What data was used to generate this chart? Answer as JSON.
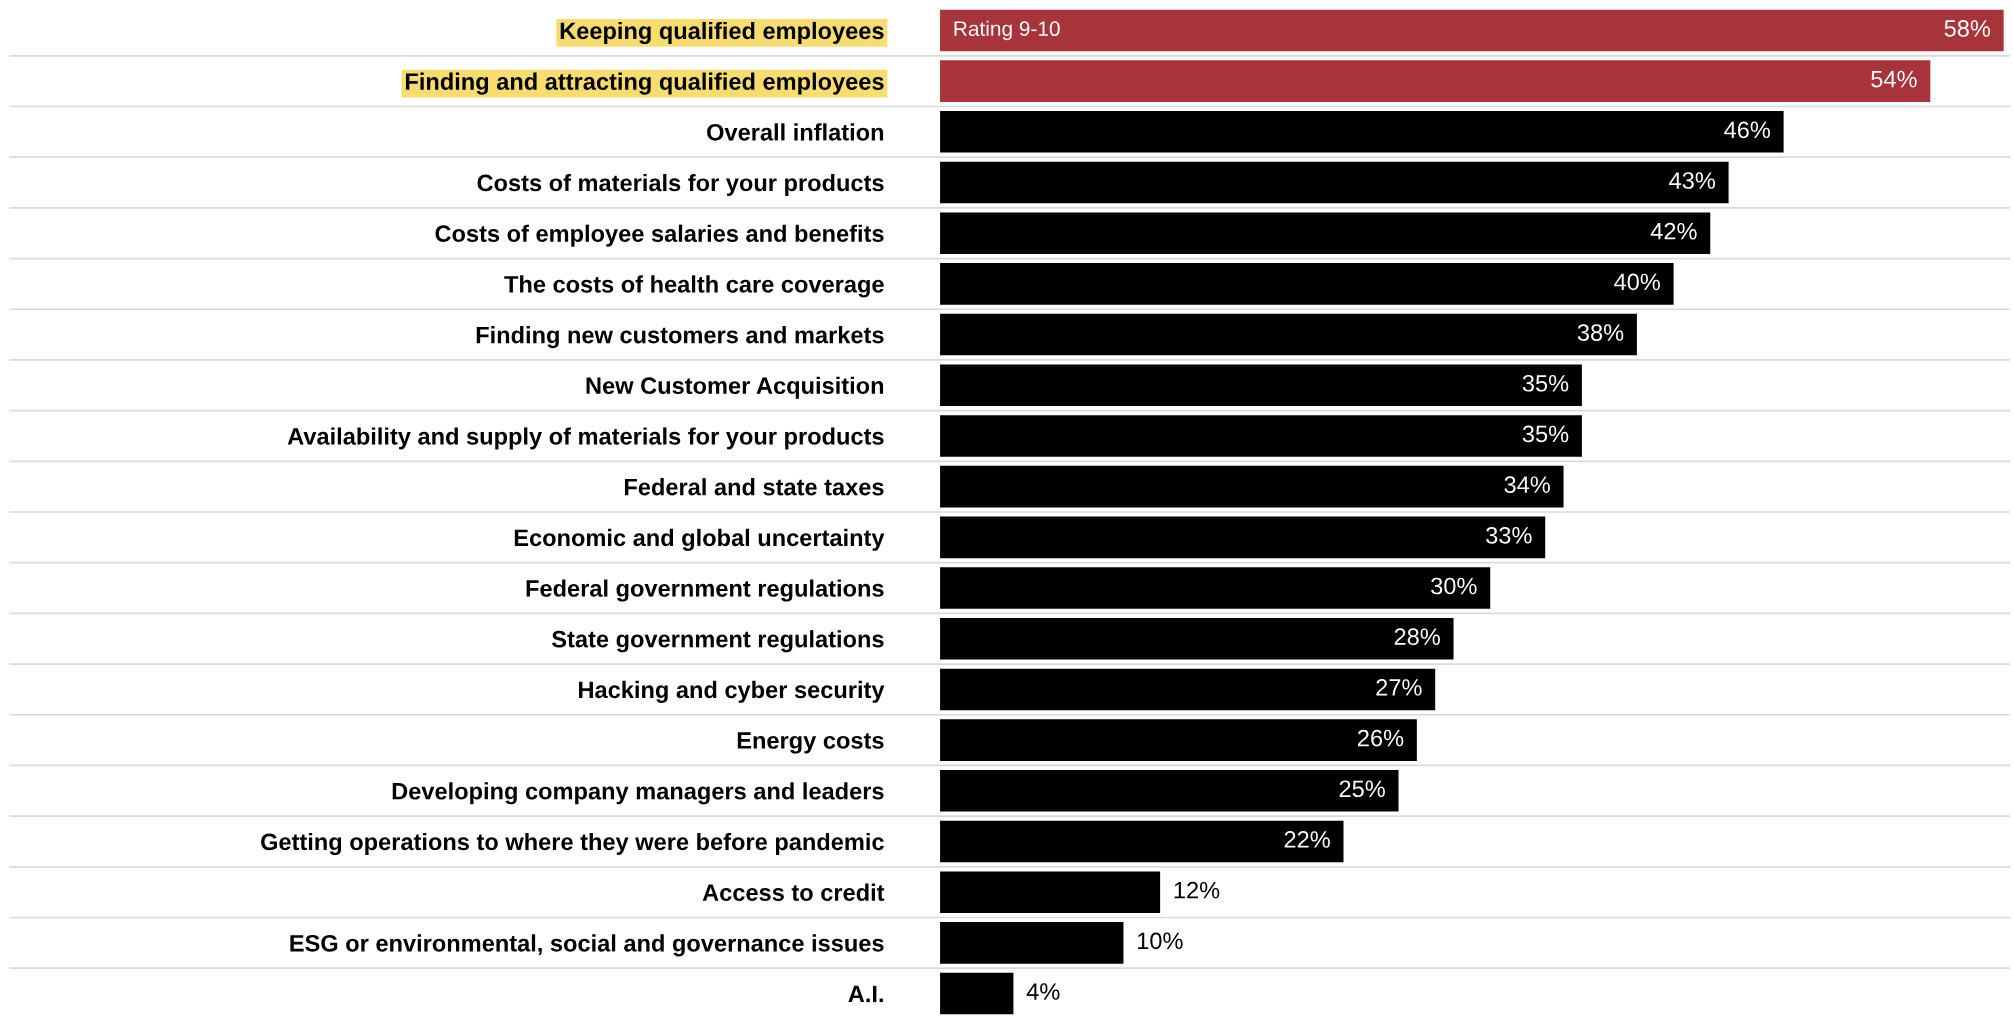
{
  "chart_data": {
    "type": "bar",
    "orientation": "horizontal",
    "categories": [
      "Keeping qualified employees",
      "Finding and attracting qualified employees",
      "Overall inflation",
      "Costs of materials for your products",
      "Costs of employee salaries and benefits",
      "The costs of health care coverage",
      "Finding new customers and markets",
      "New Customer Acquisition",
      "Availability and supply of materials for your products",
      "Federal and state taxes",
      "Economic and global uncertainty",
      "Federal government regulations",
      "State government regulations",
      "Hacking and cyber security",
      "Energy costs",
      "Developing company managers and leaders",
      "Getting operations to where they were before pandemic",
      "Access to credit",
      "ESG or environmental, social and governance issues",
      "A.I."
    ],
    "values": [
      58,
      54,
      46,
      43,
      42,
      40,
      38,
      35,
      35,
      34,
      33,
      30,
      28,
      27,
      26,
      25,
      22,
      12,
      10,
      4
    ],
    "colors": [
      "#a8343b",
      "#a8343b",
      "#000000",
      "#000000",
      "#000000",
      "#000000",
      "#000000",
      "#000000",
      "#000000",
      "#000000",
      "#000000",
      "#000000",
      "#000000",
      "#000000",
      "#000000",
      "#000000",
      "#000000",
      "#000000",
      "#000000",
      "#000000"
    ],
    "value_labels": [
      "58%",
      "54%",
      "46%",
      "43%",
      "42%",
      "40%",
      "38%",
      "35%",
      "35%",
      "34%",
      "33%",
      "30%",
      "28%",
      "27%",
      "26%",
      "25%",
      "22%",
      "12%",
      "10%",
      "4%"
    ],
    "annotations": [
      "Rating 9-10"
    ],
    "grid": "y"
  }
}
